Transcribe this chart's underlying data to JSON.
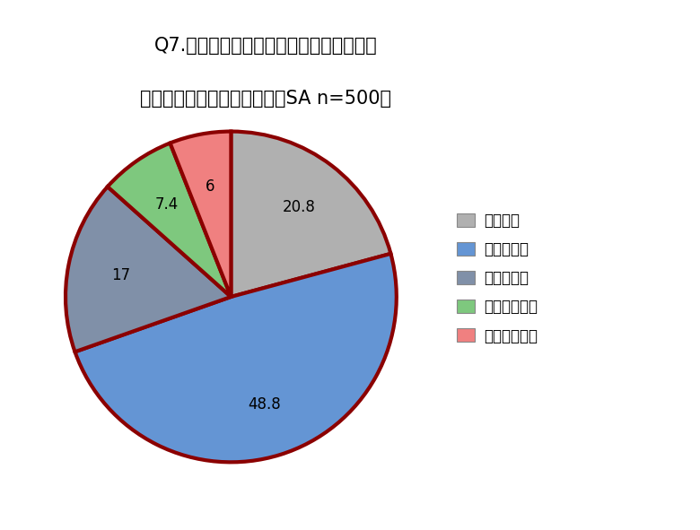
{
  "title_line1": "Q7.ヘッドホン着用による装着「疲れ」を",
  "title_line2": "感じた経験はありますか？（SA n=500）",
  "labels": [
    "よくある",
    "たまにある",
    "あまりない",
    "ほとんどない",
    "まったくない"
  ],
  "values": [
    20.8,
    48.8,
    17.0,
    7.4,
    6.0
  ],
  "colors": [
    "#b0b0b0",
    "#6495d4",
    "#8090a8",
    "#7ec87e",
    "#f08080"
  ],
  "edge_color": "#8b0000",
  "edge_linewidth": 3.0,
  "background_color": "#ffffff",
  "title_fontsize": 15,
  "legend_fontsize": 12,
  "label_fontsize": 12,
  "startangle": 90
}
